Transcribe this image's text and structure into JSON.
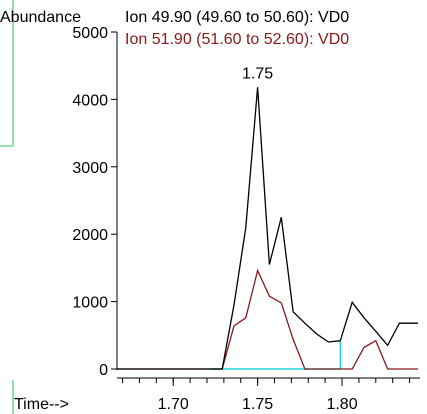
{
  "chart_data": {
    "type": "line",
    "ylabel": "Abundance",
    "xlabel": "Time-->",
    "xlim": [
      1.6667,
      1.845
    ],
    "ylim": [
      0,
      5000
    ],
    "yticks": [
      0,
      1000,
      2000,
      3000,
      4000,
      5000
    ],
    "ytick_labels": [
      "0",
      "1000",
      "2000",
      "3000",
      "4000",
      "5000"
    ],
    "xticks": [
      1.7,
      1.75,
      1.8
    ],
    "xtick_labels": [
      "1.70",
      "1.75",
      "1.80"
    ],
    "xminor_step": 0.01,
    "series": [
      {
        "name": "Ion  49.90 (49.60 to 50.60): VD0",
        "color": "#000000",
        "x": [
          1.6667,
          1.722,
          1.729,
          1.736,
          1.743,
          1.75,
          1.757,
          1.764,
          1.771,
          1.778,
          1.785,
          1.792,
          1.799,
          1.806,
          1.813,
          1.82,
          1.827,
          1.834,
          1.841,
          1.845
        ],
        "y": [
          0,
          0,
          0,
          950,
          2100,
          4180,
          1550,
          2250,
          850,
          680,
          520,
          400,
          420,
          990,
          760,
          560,
          350,
          680,
          680,
          680
        ]
      },
      {
        "name": "Ion  51.90 (51.60 to 52.60): VD0",
        "color": "#8b1a1a",
        "x": [
          1.6667,
          1.722,
          1.729,
          1.736,
          1.743,
          1.75,
          1.757,
          1.764,
          1.771,
          1.778,
          1.785,
          1.792,
          1.799,
          1.806,
          1.813,
          1.82,
          1.827,
          1.834,
          1.841,
          1.845
        ],
        "y": [
          0,
          0,
          0,
          640,
          760,
          1460,
          1080,
          980,
          440,
          0,
          0,
          0,
          0,
          0,
          320,
          420,
          0,
          0,
          0,
          0
        ]
      }
    ],
    "annotations": [
      {
        "text": "1.75",
        "x": 1.75,
        "y": 4180
      }
    ],
    "baseline": {
      "color": "#22d3e6",
      "x_start": 1.722,
      "x_end": 1.799,
      "drop_x": 1.799,
      "drop_top": 420
    }
  }
}
